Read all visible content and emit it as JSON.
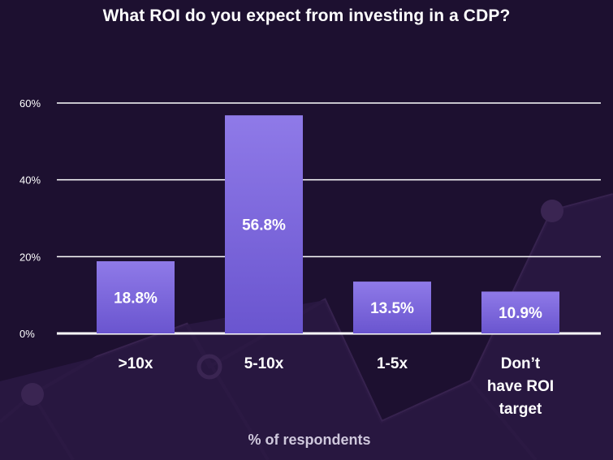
{
  "chart_data": {
    "type": "bar",
    "title": "What ROI do you expect from investing in a CDP?",
    "categories": [
      ">10x",
      "5-10x",
      "1-5x",
      "Don’t have ROI target"
    ],
    "category_lines": [
      [
        ">10x"
      ],
      [
        "5-10x"
      ],
      [
        "1-5x"
      ],
      [
        "Don’t",
        "have ROI",
        "target"
      ]
    ],
    "values": [
      18.8,
      56.8,
      13.5,
      10.9
    ],
    "value_labels": [
      "18.8%",
      "56.8%",
      "13.5%",
      "10.9%"
    ],
    "xlabel": "% of respondents",
    "ylabel": "",
    "ylim": [
      0,
      60
    ],
    "yticks": [
      0,
      20,
      40,
      60
    ],
    "ytick_labels": [
      "0%",
      "20%",
      "40%",
      "60%"
    ],
    "grid": true
  },
  "colors": {
    "background": "#1d1030",
    "bar_top": "#8f7ae8",
    "bar_bottom": "#6a55cf",
    "grid": "#ffffff",
    "text": "#ffffff",
    "caption": "#cfc8dc",
    "decor": "#3a2552"
  }
}
